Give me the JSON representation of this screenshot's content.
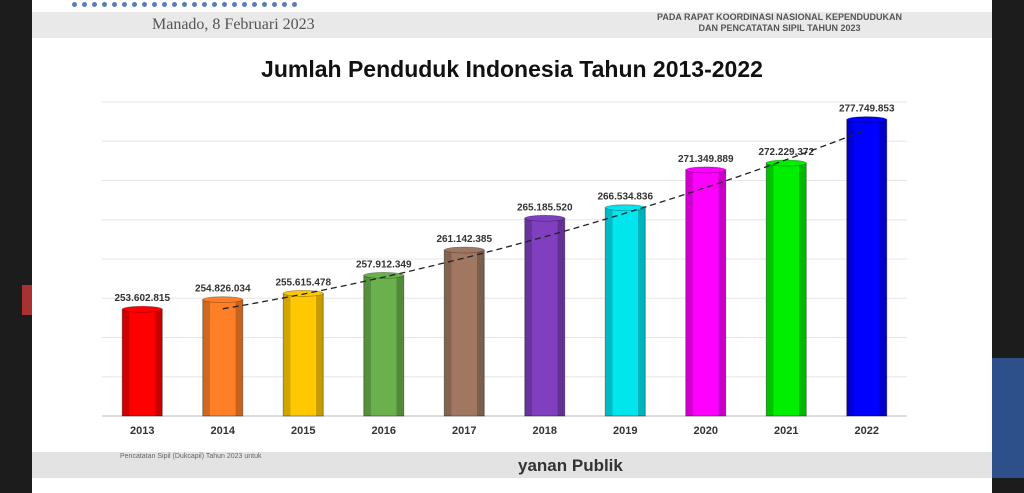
{
  "background_slide": {
    "left_text": "Manado, 8 Februari 2023",
    "right_line1": "PADA RAPAT KOORDINASI NASIONAL KEPENDUDUKAN",
    "right_line2": "DAN PENCATATAN SIPIL TAHUN 2023",
    "bottom_text": "yanan Publik",
    "bottom_small": "Pencatatan Sipil (Dukcapil) Tahun 2023 untuk"
  },
  "colors": {
    "bar_2013": "#ff0000",
    "bar_2014": "#ff7f27",
    "bar_2015": "#ffc800",
    "bar_2016": "#6ab04c",
    "bar_2017": "#a07862",
    "bar_2018": "#7f3fbf",
    "bar_2019": "#00e5ee",
    "bar_2020": "#ff00ff",
    "bar_2021": "#00ee00",
    "bar_2022": "#0000ff"
  },
  "chart_data": {
    "type": "bar",
    "title": "Jumlah Penduduk Indonesia Tahun 2013-2022",
    "categories": [
      "2013",
      "2014",
      "2015",
      "2016",
      "2017",
      "2018",
      "2019",
      "2020",
      "2021",
      "2022"
    ],
    "values": [
      253602815,
      254826034,
      255615478,
      257912349,
      261142385,
      265185520,
      266534836,
      271349889,
      272229372,
      277749853
    ],
    "value_labels": [
      "253.602.815",
      "254.826.034",
      "255.615.478",
      "257.912.349",
      "261.142.385",
      "265.185.520",
      "266.534.836",
      "271.349.889",
      "272.229.372",
      "277.749.853"
    ],
    "colors": [
      "#ff0000",
      "#ff7f27",
      "#ffc800",
      "#6ab04c",
      "#a07862",
      "#7f3fbf",
      "#00e5ee",
      "#ff00ff",
      "#00ee00",
      "#0000ff"
    ],
    "xlabel": "",
    "ylabel": "",
    "ylim": [
      240000000,
      280000000
    ],
    "grid": true,
    "trendline": "dashed",
    "legend": "none"
  }
}
